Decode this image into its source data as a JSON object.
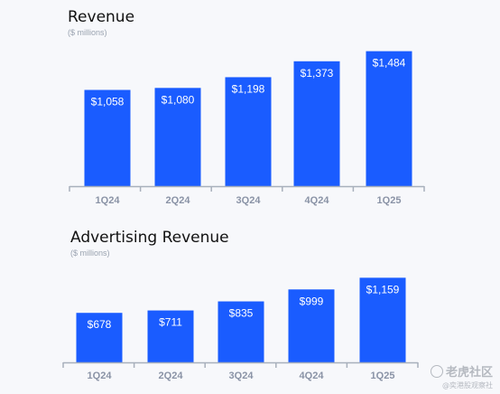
{
  "chart_data": [
    {
      "type": "bar",
      "title": "Revenue",
      "subtitle": "($ millions)",
      "categories": [
        "1Q24",
        "2Q24",
        "3Q24",
        "4Q24",
        "1Q25"
      ],
      "values": [
        1058,
        1080,
        1198,
        1373,
        1484
      ],
      "data_labels": [
        "$1,058",
        "$1,080",
        "$1,198",
        "$1,373",
        "$1,484"
      ],
      "xlabel": "",
      "ylabel": "",
      "ylim": [
        0,
        1550
      ],
      "grid": false,
      "bar_color": "#1a5cff"
    },
    {
      "type": "bar",
      "title": "Advertising Revenue",
      "subtitle": "($ millions)",
      "categories": [
        "1Q24",
        "2Q24",
        "3Q24",
        "4Q24",
        "1Q25"
      ],
      "values": [
        678,
        711,
        835,
        999,
        1159
      ],
      "data_labels": [
        "$678",
        "$711",
        "$835",
        "$999",
        "$1,159"
      ],
      "xlabel": "",
      "ylabel": "",
      "ylim": [
        0,
        1250
      ],
      "grid": false,
      "bar_color": "#1a5cff"
    }
  ],
  "watermark": {
    "main": "老虎社区",
    "sub": "@奕港股观察社"
  },
  "colors": {
    "axis": "#a8b0bc",
    "tick_label": "#8a93a6",
    "bar_label": "#ffffff"
  }
}
